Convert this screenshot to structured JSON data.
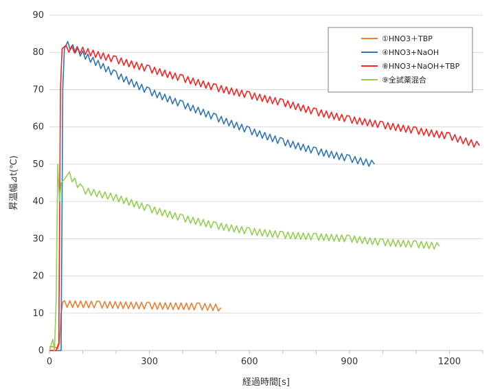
{
  "chart_data": {
    "type": "line",
    "xlabel": "経過時間[s]",
    "ylabel": "昇温幅⊿t(℃)",
    "xlim": [
      0,
      1300
    ],
    "ylim": [
      0,
      90
    ],
    "x_ticks": [
      "0",
      "300",
      "600",
      "900",
      "1200"
    ],
    "x_tick_values": [
      0,
      300,
      600,
      900,
      1200
    ],
    "y_ticks": [
      "0",
      "10",
      "20",
      "30",
      "40",
      "50",
      "60",
      "70",
      "80",
      "90"
    ],
    "y_tick_values": [
      0,
      10,
      20,
      30,
      40,
      50,
      60,
      70,
      80,
      90
    ],
    "grid": "horizontal",
    "legend_position": "top-right",
    "series": [
      {
        "name": "①HNO3＋TBP",
        "color": "#ED7D31",
        "x": [
          0,
          15,
          25,
          30,
          35,
          40,
          45,
          150,
          300,
          450,
          515
        ],
        "y": [
          1,
          1,
          0.5,
          2,
          10,
          13,
          12.5,
          12.3,
          12,
          11.8,
          11.5
        ]
      },
      {
        "name": "④HNO3+NaOH",
        "color": "#2E75B6",
        "x": [
          0,
          20,
          35,
          40,
          45,
          55,
          100,
          200,
          300,
          400,
          500,
          600,
          700,
          800,
          900,
          975
        ],
        "y": [
          0,
          0,
          0,
          70,
          81,
          82,
          79.5,
          74,
          69.5,
          66,
          62.5,
          59,
          56,
          53.5,
          51.5,
          50
        ]
      },
      {
        "name": "⑧HNO3+NaOH+TBP",
        "color": "#FF2020",
        "x": [
          0,
          20,
          28,
          33,
          38,
          50,
          100,
          200,
          300,
          400,
          500,
          600,
          700,
          800,
          900,
          1000,
          1100,
          1200,
          1290
        ],
        "y": [
          0,
          0,
          2,
          70,
          81,
          81,
          80.5,
          78,
          75.5,
          73,
          70.5,
          68.5,
          66.5,
          64,
          62,
          60.5,
          59,
          57.5,
          55
        ]
      },
      {
        "name": "⑨全試薬混合",
        "color": "#92D050",
        "x": [
          0,
          10,
          15,
          20,
          25,
          30,
          35,
          45,
          60,
          100,
          150,
          200,
          300,
          400,
          500,
          600,
          700,
          800,
          900,
          1000,
          1100,
          1170
        ],
        "y": [
          0,
          3,
          0,
          13,
          50,
          40,
          45,
          46,
          47,
          43,
          42,
          41,
          38,
          35.5,
          33.5,
          32,
          31,
          30.5,
          30,
          29,
          28.5,
          28
        ]
      }
    ]
  }
}
